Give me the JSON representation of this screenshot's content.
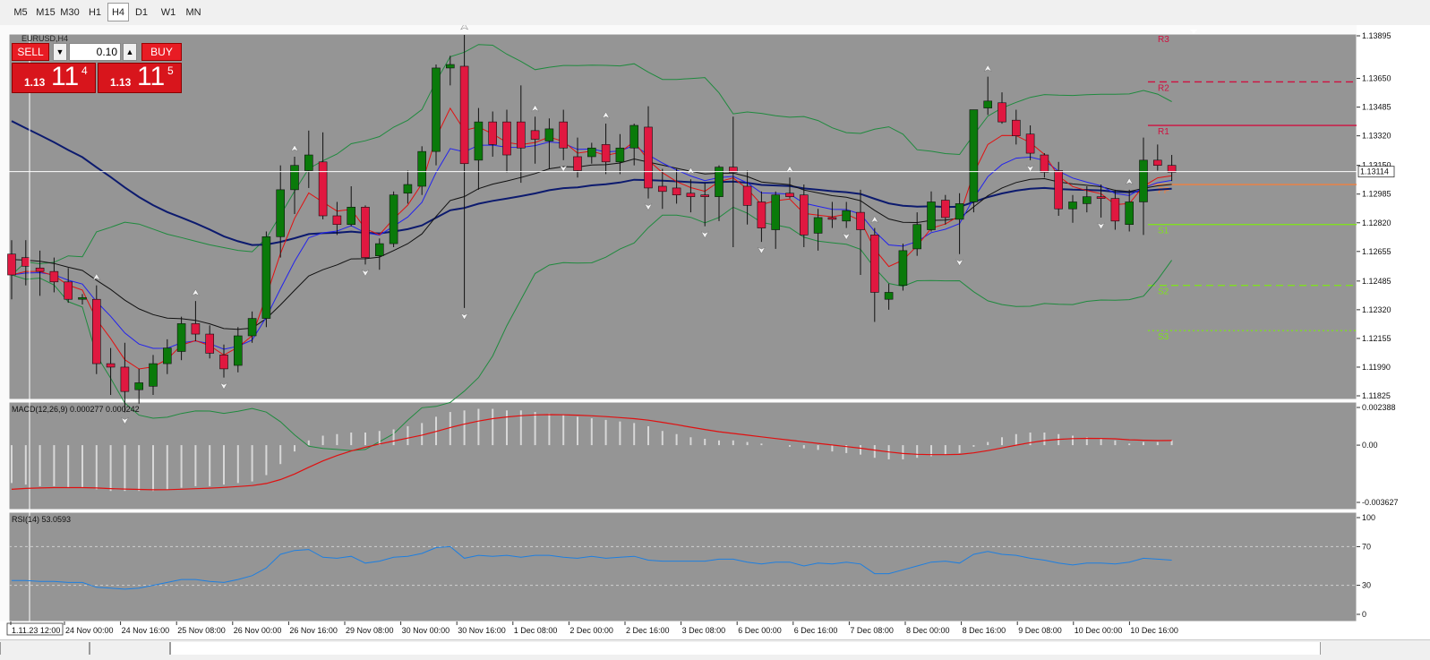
{
  "timeframes": [
    {
      "label": "M5",
      "active": false
    },
    {
      "label": "M15",
      "active": false
    },
    {
      "label": "M30",
      "active": false
    },
    {
      "label": "H1",
      "active": false
    },
    {
      "label": "H4",
      "active": true
    },
    {
      "label": "D1",
      "active": false
    },
    {
      "label": "W1",
      "active": false
    },
    {
      "label": "MN",
      "active": false
    }
  ],
  "symbol_label": "EURUSD,H4",
  "trade_panel": {
    "sell_label": "SELL",
    "buy_label": "BUY",
    "volume": "0.10",
    "sell_price": {
      "prefix": "1.13",
      "big": "11",
      "sup": "4"
    },
    "buy_price": {
      "prefix": "1.13",
      "big": "11",
      "sup": "5"
    }
  },
  "colors": {
    "chart_bg": "#959595",
    "bull": "#0a7a0a",
    "bear": "#e01840",
    "ema_slow": "#0c1a6e",
    "ema_mid": "#101010",
    "ema_blue": "#2222ee",
    "ema_red": "#e21010",
    "bb": "#1f8a3e",
    "macd_signal": "#e01010",
    "macd_hist": "#d8d8d8",
    "rsi": "#1e7fe0",
    "r_lines": "#d01040",
    "pp_line": "#f08040",
    "s_lines": "#80e020"
  },
  "chart_data": {
    "type": "candlestick",
    "symbol": "EURUSD,H4",
    "price_axis": {
      "ticks": [
        1.13895,
        1.1365,
        1.13485,
        1.1332,
        1.1315,
        1.12985,
        1.1282,
        1.12655,
        1.12485,
        1.1232,
        1.12155,
        1.1199,
        1.11825
      ],
      "current": 1.13114,
      "ymin": 1.11825,
      "ymax": 1.13895
    },
    "time_labels": [
      "1.11.23 12:00",
      "24 Nov 00:00",
      "24 Nov 16:00",
      "25 Nov 08:00",
      "26 Nov 00:00",
      "26 Nov 16:00",
      "29 Nov 08:00",
      "30 Nov 00:00",
      "30 Nov 16:00",
      "1 Dec 08:00",
      "2 Dec 00:00",
      "2 Dec 16:00",
      "3 Dec 08:00",
      "6 Dec 00:00",
      "6 Dec 16:00",
      "7 Dec 08:00",
      "8 Dec 00:00",
      "8 Dec 16:00",
      "9 Dec 08:00",
      "10 Dec 00:00",
      "10 Dec 16:00"
    ],
    "candles": [
      [
        1.1264,
        1.1272,
        1.1238,
        1.1252
      ],
      [
        1.1262,
        1.1272,
        1.1246,
        1.1257
      ],
      [
        1.1256,
        1.1266,
        1.124,
        1.1254
      ],
      [
        1.1254,
        1.1262,
        1.1242,
        1.1248
      ],
      [
        1.1248,
        1.1256,
        1.1236,
        1.1238
      ],
      [
        1.1238,
        1.1241,
        1.1235,
        1.1239
      ],
      [
        1.1238,
        1.1246,
        1.1195,
        1.1201
      ],
      [
        1.1201,
        1.121,
        1.1183,
        1.1199
      ],
      [
        1.1199,
        1.1213,
        1.1173,
        1.1185
      ],
      [
        1.1186,
        1.1198,
        1.1178,
        1.119
      ],
      [
        1.1188,
        1.1206,
        1.1183,
        1.1201
      ],
      [
        1.1201,
        1.1215,
        1.1195,
        1.121
      ],
      [
        1.1208,
        1.1228,
        1.1203,
        1.1224
      ],
      [
        1.1224,
        1.1237,
        1.1214,
        1.1218
      ],
      [
        1.1218,
        1.1223,
        1.1204,
        1.1207
      ],
      [
        1.1206,
        1.1212,
        1.1193,
        1.1198
      ],
      [
        1.12,
        1.1222,
        1.1196,
        1.1217
      ],
      [
        1.1217,
        1.1231,
        1.1213,
        1.1227
      ],
      [
        1.1227,
        1.1277,
        1.1222,
        1.1274
      ],
      [
        1.1274,
        1.1315,
        1.1262,
        1.1301
      ],
      [
        1.1301,
        1.132,
        1.1287,
        1.1315
      ],
      [
        1.1312,
        1.1335,
        1.1302,
        1.1321
      ],
      [
        1.1317,
        1.1334,
        1.1284,
        1.1286
      ],
      [
        1.1286,
        1.1294,
        1.1275,
        1.1281
      ],
      [
        1.1281,
        1.1303,
        1.128,
        1.1291
      ],
      [
        1.1291,
        1.1292,
        1.1258,
        1.1262
      ],
      [
        1.1263,
        1.1273,
        1.1255,
        1.127
      ],
      [
        1.127,
        1.13,
        1.1268,
        1.1298
      ],
      [
        1.1299,
        1.1312,
        1.1293,
        1.1304
      ],
      [
        1.1303,
        1.1326,
        1.1298,
        1.1323
      ],
      [
        1.1323,
        1.1373,
        1.1315,
        1.1371
      ],
      [
        1.1371,
        1.1378,
        1.1361,
        1.1373
      ],
      [
        1.1372,
        1.139,
        1.1233,
        1.1316
      ],
      [
        1.1318,
        1.1348,
        1.1301,
        1.134
      ],
      [
        1.134,
        1.1346,
        1.132,
        1.1327
      ],
      [
        1.134,
        1.1347,
        1.1311,
        1.1321
      ],
      [
        1.134,
        1.1361,
        1.1305,
        1.1325
      ],
      [
        1.1335,
        1.1343,
        1.1316,
        1.133
      ],
      [
        1.1329,
        1.1342,
        1.1313,
        1.1336
      ],
      [
        1.134,
        1.1347,
        1.1318,
        1.1325
      ],
      [
        1.132,
        1.1331,
        1.1308,
        1.1312
      ],
      [
        1.132,
        1.1328,
        1.1316,
        1.1325
      ],
      [
        1.1327,
        1.1339,
        1.131,
        1.1317
      ],
      [
        1.1317,
        1.1333,
        1.131,
        1.1325
      ],
      [
        1.1325,
        1.1339,
        1.1315,
        1.1338
      ],
      [
        1.1337,
        1.1349,
        1.1296,
        1.1302
      ],
      [
        1.1303,
        1.1313,
        1.129,
        1.13
      ],
      [
        1.1302,
        1.1313,
        1.1293,
        1.1298
      ],
      [
        1.1299,
        1.1307,
        1.1288,
        1.1297
      ],
      [
        1.1298,
        1.1305,
        1.128,
        1.1297
      ],
      [
        1.1297,
        1.1315,
        1.1283,
        1.1314
      ],
      [
        1.1314,
        1.1343,
        1.1268,
        1.1311
      ],
      [
        1.1303,
        1.1312,
        1.1281,
        1.1292
      ],
      [
        1.1294,
        1.13,
        1.1271,
        1.1279
      ],
      [
        1.1278,
        1.13,
        1.1267,
        1.1298
      ],
      [
        1.1299,
        1.1308,
        1.1296,
        1.1297
      ],
      [
        1.1298,
        1.1304,
        1.1268,
        1.1275
      ],
      [
        1.1276,
        1.129,
        1.1266,
        1.1285
      ],
      [
        1.1285,
        1.1294,
        1.1279,
        1.1284
      ],
      [
        1.1283,
        1.1294,
        1.1279,
        1.1289
      ],
      [
        1.1288,
        1.1301,
        1.1252,
        1.1278
      ],
      [
        1.1275,
        1.1279,
        1.1225,
        1.1242
      ],
      [
        1.1238,
        1.1247,
        1.1232,
        1.1242
      ],
      [
        1.1246,
        1.127,
        1.1243,
        1.1266
      ],
      [
        1.1267,
        1.1288,
        1.1263,
        1.1281
      ],
      [
        1.1278,
        1.13,
        1.1277,
        1.1294
      ],
      [
        1.1295,
        1.1298,
        1.1281,
        1.1285
      ],
      [
        1.1284,
        1.1299,
        1.1264,
        1.1293
      ],
      [
        1.1294,
        1.1347,
        1.1288,
        1.1347
      ],
      [
        1.1348,
        1.1366,
        1.1344,
        1.1352
      ],
      [
        1.1351,
        1.1357,
        1.1339,
        1.134
      ],
      [
        1.1341,
        1.1347,
        1.1327,
        1.1332
      ],
      [
        1.1333,
        1.1338,
        1.1318,
        1.1322
      ],
      [
        1.1321,
        1.1322,
        1.1308,
        1.1311
      ],
      [
        1.1312,
        1.1317,
        1.1286,
        1.129
      ],
      [
        1.129,
        1.1298,
        1.1282,
        1.1294
      ],
      [
        1.1293,
        1.1303,
        1.1288,
        1.1297
      ],
      [
        1.1297,
        1.1304,
        1.1285,
        1.1296
      ],
      [
        1.1296,
        1.1301,
        1.1278,
        1.1283
      ],
      [
        1.1281,
        1.1301,
        1.1277,
        1.1294
      ],
      [
        1.1294,
        1.1331,
        1.1275,
        1.1318
      ],
      [
        1.1318,
        1.1327,
        1.1312,
        1.1315
      ],
      [
        1.1315,
        1.1321,
        1.1306,
        1.1311
      ]
    ],
    "indicators": [
      {
        "name": "EMA slow",
        "color": "#0c1a6e"
      },
      {
        "name": "EMA mid",
        "color": "#101010"
      },
      {
        "name": "EMA fast",
        "color": "#2222ee"
      },
      {
        "name": "EMA fastest",
        "color": "#e21010"
      },
      {
        "name": "Bollinger Bands",
        "color": "#1f8a3e"
      }
    ],
    "pivots": [
      {
        "label": "R3",
        "value": 1.1391
      },
      {
        "label": "R2",
        "value": 1.1363
      },
      {
        "label": "R1",
        "value": 1.1338
      },
      {
        "label": "PP",
        "value": 1.1304
      },
      {
        "label": "S1",
        "value": 1.1281
      },
      {
        "label": "S2",
        "value": 1.1246
      },
      {
        "label": "S3",
        "value": 1.122
      }
    ],
    "macd": {
      "label": "MACD(12,26,9) 0.000277 0.000242",
      "params": "12,26,9",
      "main": 0.000277,
      "signal": 0.000242,
      "ticks": [
        0.002388,
        0.0,
        -0.003627
      ],
      "tick_labels": [
        "0.002388",
        "0.00",
        "-0.003627"
      ]
    },
    "rsi": {
      "label": "RSI(14) 53.0593",
      "period": 14,
      "value": 53.0593,
      "levels": [
        70,
        30
      ],
      "ticks": [
        100,
        70,
        30,
        0
      ]
    }
  }
}
